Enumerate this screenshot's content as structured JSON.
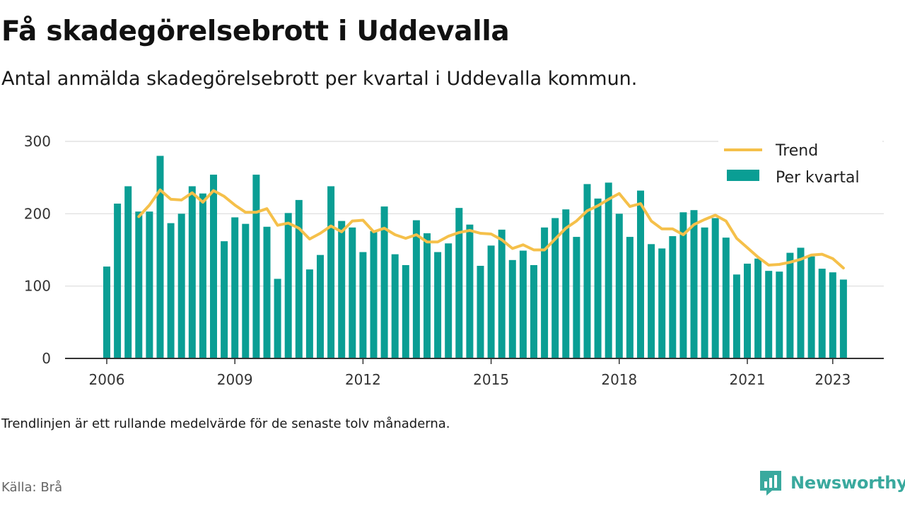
{
  "header": {
    "title": "Få skadegörelsebrott i Uddevalla",
    "subtitle": "Antal anmälda skadegörelsebrott per kvartal i Uddevalla kommun."
  },
  "footer": {
    "note": "Trendlinjen är ett rullande medelvärde för de senaste tolv månaderna.",
    "source": "Källa: Brå",
    "brand": "Newsworthy",
    "brand_icon": "newsworthy-logo-icon"
  },
  "colors": {
    "bar": "#0a9e94",
    "trend": "#f5c04a",
    "brand": "#3aa99e"
  },
  "chart_data": {
    "type": "bar",
    "x_start": "2006 Q1",
    "x_ticks": [
      "2006",
      "2009",
      "2012",
      "2015",
      "2018",
      "2021",
      "2023"
    ],
    "y_ticks": [
      0,
      100,
      200,
      300
    ],
    "ylim": [
      0,
      300
    ],
    "grid": true,
    "legend_position": "top-right",
    "series": [
      {
        "name": "Per kvartal",
        "kind": "bar",
        "values": [
          127,
          214,
          238,
          203,
          203,
          280,
          187,
          200,
          238,
          228,
          254,
          162,
          195,
          186,
          254,
          182,
          110,
          201,
          219,
          123,
          143,
          238,
          190,
          181,
          147,
          176,
          210,
          144,
          129,
          191,
          173,
          147,
          159,
          208,
          185,
          128,
          156,
          178,
          136,
          149,
          129,
          181,
          194,
          206,
          168,
          241,
          221,
          243,
          200,
          168,
          232,
          158,
          152,
          169,
          202,
          205,
          181,
          194,
          167,
          116,
          131,
          138,
          121,
          120,
          146,
          153,
          141,
          124,
          119,
          109
        ]
      },
      {
        "name": "Trend",
        "kind": "line",
        "values": [
          null,
          null,
          null,
          196,
          212,
          233,
          220,
          219,
          229,
          216,
          232,
          224,
          212,
          202,
          202,
          207,
          184,
          187,
          180,
          165,
          173,
          183,
          175,
          190,
          191,
          175,
          180,
          171,
          166,
          171,
          161,
          161,
          169,
          174,
          177,
          173,
          172,
          164,
          152,
          157,
          150,
          150,
          165,
          180,
          190,
          204,
          211,
          220,
          228,
          210,
          214,
          190,
          179,
          179,
          171,
          185,
          192,
          198,
          190,
          166,
          153,
          140,
          129,
          130,
          133,
          137,
          143,
          144,
          138,
          125
        ]
      }
    ]
  }
}
